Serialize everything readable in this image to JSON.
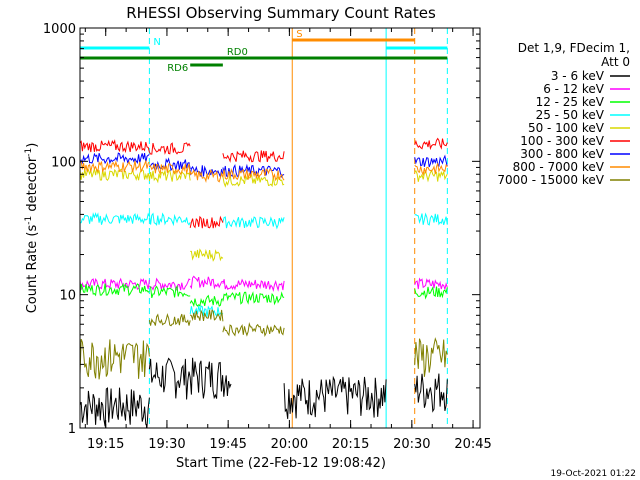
{
  "chart_data": {
    "type": "line",
    "title": "RHESSI Observing Summary Count Rates",
    "xlabel": "Start Time (22-Feb-12 19:08:42)",
    "ylabel_main": "Count Rate (s",
    "ylabel_sup1": "-1",
    "ylabel_mid": " detector",
    "ylabel_sup2": "-1",
    "ylabel_end": ")",
    "yscale": "log",
    "ylim": [
      1,
      1000
    ],
    "xlim_minutes": [
      0,
      98
    ],
    "x_ticks": [
      "19:15",
      "19:30",
      "19:45",
      "20:00",
      "20:15",
      "20:30",
      "20:45"
    ],
    "y_ticks": [
      "1",
      "10",
      "100",
      "1000"
    ],
    "legend_header": [
      "Det 1,9, FDecim 1,",
      "Att 0"
    ],
    "series": [
      {
        "name": "3 - 6 keV",
        "color": "#000000",
        "segments": [
          [
            0,
            17,
            1.5
          ],
          [
            17,
            37,
            2.5
          ],
          [
            50,
            75,
            1.8
          ],
          [
            82,
            90,
            2.0
          ]
        ]
      },
      {
        "name": "6 - 12 keV",
        "color": "#ff00ff",
        "segments": [
          [
            0,
            17,
            12
          ],
          [
            17,
            27,
            12
          ],
          [
            27,
            35,
            12.5
          ],
          [
            35,
            50,
            12
          ],
          [
            82,
            90,
            12
          ]
        ]
      },
      {
        "name": "12 - 25 keV",
        "color": "#00ff00",
        "segments": [
          [
            0,
            17,
            11
          ],
          [
            17,
            27,
            10.5
          ],
          [
            27,
            35,
            9
          ],
          [
            35,
            50,
            9.5
          ],
          [
            82,
            90,
            10.5
          ]
        ]
      },
      {
        "name": "25 - 50 keV",
        "color": "#00ffff",
        "segments": [
          [
            0,
            17,
            37
          ],
          [
            17,
            27,
            37
          ],
          [
            27,
            35,
            7.5
          ],
          [
            35,
            50,
            35
          ],
          [
            82,
            90,
            37
          ]
        ]
      },
      {
        "name": "50 - 100 keV",
        "color": "#d8d800",
        "segments": [
          [
            0,
            17,
            80
          ],
          [
            17,
            27,
            78
          ],
          [
            27,
            35,
            20
          ],
          [
            35,
            50,
            72
          ],
          [
            82,
            90,
            78
          ]
        ]
      },
      {
        "name": "100 - 300 keV",
        "color": "#ff0000",
        "segments": [
          [
            0,
            17,
            130
          ],
          [
            17,
            27,
            125
          ],
          [
            27,
            35,
            35
          ],
          [
            35,
            50,
            110
          ],
          [
            82,
            90,
            135
          ]
        ]
      },
      {
        "name": "300 - 800 keV",
        "color": "#0000ff",
        "segments": [
          [
            0,
            17,
            105
          ],
          [
            17,
            27,
            95
          ],
          [
            27,
            35,
            85
          ],
          [
            35,
            50,
            85
          ],
          [
            82,
            90,
            100
          ]
        ]
      },
      {
        "name": "800 - 7000 keV",
        "color": "#ff8c00",
        "segments": [
          [
            0,
            17,
            92
          ],
          [
            17,
            27,
            88
          ],
          [
            27,
            35,
            78
          ],
          [
            35,
            50,
            80
          ],
          [
            82,
            90,
            88
          ]
        ]
      },
      {
        "name": "7000 - 15000 keV",
        "color": "#808000",
        "segments": [
          [
            0,
            17,
            3.5
          ],
          [
            17,
            27,
            6.5
          ],
          [
            27,
            35,
            7
          ],
          [
            35,
            50,
            5.5
          ],
          [
            82,
            90,
            3.5
          ]
        ]
      }
    ],
    "flag_bars": [
      {
        "label": "N",
        "color": "#00ffff",
        "ranges": [
          [
            0,
            17
          ],
          [
            75,
            90
          ]
        ]
      },
      {
        "label": "RD0",
        "color": "#008000",
        "ranges": [
          [
            0,
            90
          ]
        ]
      },
      {
        "label": "RD6",
        "color": "#008000",
        "ranges": [
          [
            27,
            35
          ]
        ]
      },
      {
        "label": "S",
        "color": "#ff8c00",
        "ranges": [
          [
            52,
            82
          ]
        ]
      }
    ],
    "vlines": [
      {
        "x": 0,
        "color": "#00ffff",
        "style": "solid"
      },
      {
        "x": 17,
        "color": "#00ffff",
        "style": "dashed"
      },
      {
        "x": 52,
        "color": "#ff8c00",
        "style": "solid"
      },
      {
        "x": 75,
        "color": "#00ffff",
        "style": "solid"
      },
      {
        "x": 82,
        "color": "#ff8c00",
        "style": "dashed"
      },
      {
        "x": 90,
        "color": "#00ffff",
        "style": "dashed"
      }
    ],
    "grid": false,
    "legend_position": "right"
  },
  "footer_date": "19-Oct-2021 01:22"
}
